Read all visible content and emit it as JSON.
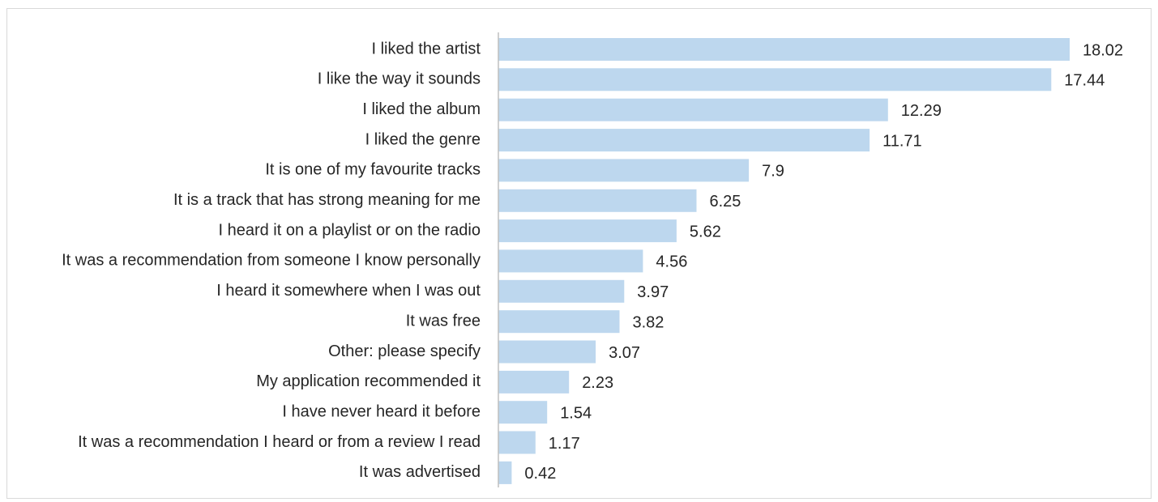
{
  "chart_data": {
    "type": "bar",
    "orientation": "horizontal",
    "title": "",
    "xlabel": "",
    "ylabel": "",
    "categories": [
      "I liked the artist",
      "I like the way it sounds",
      "I liked the album",
      "I liked the genre",
      "It is one of my favourite tracks",
      "It is a track that has strong meaning for me",
      "I heard it on a playlist or on the radio",
      "It was a recommendation from someone I know personally",
      "I heard it somewhere when I was out",
      "It was free",
      "Other: please specify",
      "My application recommended it",
      "I have never heard it before",
      "It was a recommendation I heard or from a review I read",
      "It was advertised"
    ],
    "values": [
      18.02,
      17.44,
      12.29,
      11.71,
      7.9,
      6.25,
      5.62,
      4.56,
      3.97,
      3.82,
      3.07,
      2.23,
      1.54,
      1.17,
      0.42
    ],
    "value_labels": [
      "18.02",
      "17.44",
      "12.29",
      "11.71",
      "7.9",
      "6.25",
      "5.62",
      "4.56",
      "3.97",
      "3.82",
      "3.07",
      "2.23",
      "1.54",
      "1.17",
      "0.42"
    ],
    "xlim": [
      0,
      18.5
    ],
    "grid": false,
    "legend": "none",
    "bar_color": "#bdd7ee",
    "axis_color": "#bfbfbf"
  }
}
